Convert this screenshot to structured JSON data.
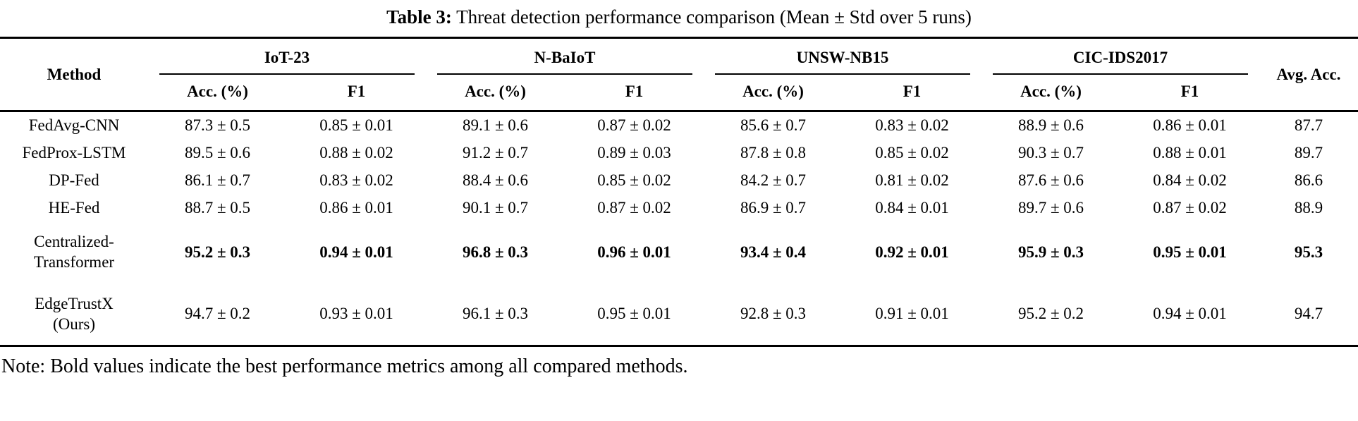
{
  "title": {
    "label": "Table 3:",
    "text": " Threat detection performance comparison (Mean ± Std over 5 runs)"
  },
  "table": {
    "method_header": "Method",
    "avg_header": "Avg. Acc.",
    "groups": [
      {
        "name": "IoT-23",
        "cols": [
          "Acc. (%)",
          "F1"
        ]
      },
      {
        "name": "N-BaIoT",
        "cols": [
          "Acc. (%)",
          "F1"
        ]
      },
      {
        "name": "UNSW-NB15",
        "cols": [
          "Acc. (%)",
          "F1"
        ]
      },
      {
        "name": "CIC-IDS2017",
        "cols": [
          "Acc. (%)",
          "F1"
        ]
      }
    ],
    "rows": [
      {
        "method": "FedAvg-CNN",
        "bold": false,
        "values": [
          "87.3 ± 0.5",
          "0.85 ± 0.01",
          "89.1 ± 0.6",
          "0.87 ± 0.02",
          "85.6 ± 0.7",
          "0.83 ± 0.02",
          "88.9 ± 0.6",
          "0.86 ± 0.01",
          "87.7"
        ]
      },
      {
        "method": "FedProx-LSTM",
        "bold": false,
        "values": [
          "89.5 ± 0.6",
          "0.88 ± 0.02",
          "91.2 ± 0.7",
          "0.89 ± 0.03",
          "87.8 ± 0.8",
          "0.85 ± 0.02",
          "90.3 ± 0.7",
          "0.88 ± 0.01",
          "89.7"
        ]
      },
      {
        "method": "DP-Fed",
        "bold": false,
        "values": [
          "86.1 ± 0.7",
          "0.83 ± 0.02",
          "88.4 ± 0.6",
          "0.85 ± 0.02",
          "84.2 ± 0.7",
          "0.81 ± 0.02",
          "87.6 ± 0.6",
          "0.84 ± 0.02",
          "86.6"
        ]
      },
      {
        "method": "HE-Fed",
        "bold": false,
        "values": [
          "88.7 ± 0.5",
          "0.86 ± 0.01",
          "90.1 ± 0.7",
          "0.87 ± 0.02",
          "86.9 ± 0.7",
          "0.84 ± 0.01",
          "89.7 ± 0.6",
          "0.87 ± 0.02",
          "88.9"
        ]
      },
      {
        "method": "Centralized-\nTransformer",
        "bold": true,
        "values": [
          "95.2 ± 0.3",
          "0.94 ± 0.01",
          "96.8 ± 0.3",
          "0.96 ± 0.01",
          "93.4 ± 0.4",
          "0.92 ± 0.01",
          "95.9 ± 0.3",
          "0.95 ± 0.01",
          "95.3"
        ]
      },
      {
        "method": "EdgeTrustX\n(Ours)",
        "bold": false,
        "values": [
          "94.7 ± 0.2",
          "0.93 ± 0.01",
          "96.1 ± 0.3",
          "0.95 ± 0.01",
          "92.8 ± 0.3",
          "0.91 ± 0.01",
          "95.2 ± 0.2",
          "0.94 ± 0.01",
          "94.7"
        ]
      }
    ]
  },
  "note": "Note: Bold values indicate the best performance metrics among all compared methods.",
  "colors": {
    "text": "#000000",
    "rule": "#000000",
    "background": "#ffffff"
  }
}
